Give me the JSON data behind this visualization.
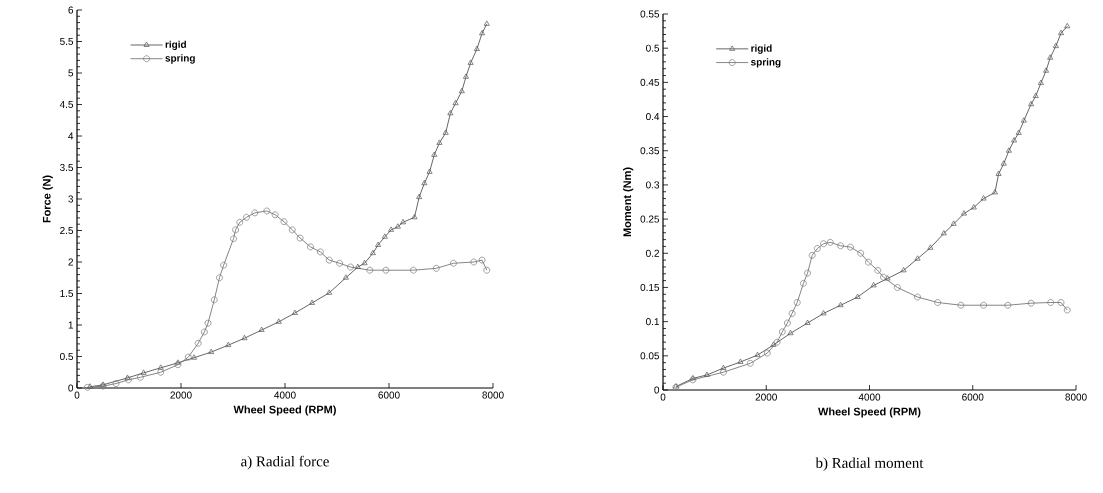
{
  "chart_data": [
    {
      "type": "line",
      "xlabel": "Wheel Speed (RPM)",
      "ylabel": "Force (N)",
      "annotations": [
        "a) Radial force"
      ],
      "xlim": [
        0,
        8000
      ],
      "xticks": [
        0,
        2000,
        4000,
        6000,
        8000
      ],
      "ylim": [
        0,
        6
      ],
      "yticks": [
        0,
        0.5,
        1,
        1.5,
        2,
        2.5,
        3,
        3.5,
        4,
        4.5,
        5,
        5.5,
        6
      ],
      "legend": "top left",
      "line_style": "solid",
      "grid": false,
      "series": [
        {
          "name": "rigid",
          "color": "#555555",
          "marker": "triangle",
          "x": [
            250,
            500,
            970,
            1280,
            1610,
            1940,
            2250,
            2580,
            2910,
            3220,
            3550,
            3880,
            4190,
            4520,
            4850,
            5170,
            5400,
            5530,
            5690,
            5790,
            5920,
            6040,
            6170,
            6270,
            6490,
            6580,
            6680,
            6780,
            6870,
            6970,
            7090,
            7180,
            7280,
            7400,
            7480,
            7570,
            7690,
            7790,
            7880
          ],
          "values": [
            0.02,
            0.05,
            0.16,
            0.24,
            0.32,
            0.4,
            0.48,
            0.57,
            0.68,
            0.79,
            0.92,
            1.05,
            1.19,
            1.35,
            1.51,
            1.75,
            1.92,
            1.98,
            2.14,
            2.27,
            2.4,
            2.51,
            2.56,
            2.63,
            2.71,
            3.03,
            3.25,
            3.43,
            3.7,
            3.89,
            4.05,
            4.36,
            4.52,
            4.71,
            4.94,
            5.16,
            5.38,
            5.63,
            5.78
          ]
        },
        {
          "name": "spring",
          "color": "#777777",
          "marker": "circle",
          "x": [
            200,
            500,
            750,
            990,
            1220,
            1610,
            1940,
            2140,
            2330,
            2450,
            2520,
            2640,
            2740,
            2820,
            3010,
            3050,
            3130,
            3260,
            3420,
            3650,
            3810,
            3980,
            4140,
            4290,
            4490,
            4680,
            4850,
            5050,
            5260,
            5630,
            5940,
            6470,
            6910,
            7240,
            7630,
            7790,
            7880
          ],
          "values": [
            0.01,
            0.03,
            0.07,
            0.13,
            0.17,
            0.25,
            0.37,
            0.49,
            0.71,
            0.89,
            1.03,
            1.4,
            1.75,
            1.95,
            2.37,
            2.51,
            2.63,
            2.71,
            2.78,
            2.81,
            2.75,
            2.64,
            2.51,
            2.38,
            2.24,
            2.16,
            2.03,
            1.98,
            1.92,
            1.87,
            1.87,
            1.87,
            1.9,
            1.98,
            2.0,
            2.03,
            1.87
          ]
        }
      ]
    },
    {
      "type": "line",
      "xlabel": "Wheel Speed (RPM)",
      "ylabel": "Moment (Nm)",
      "annotations": [
        "b) Radial moment"
      ],
      "xlim": [
        0,
        8000
      ],
      "xticks": [
        0,
        2000,
        4000,
        6000,
        8000
      ],
      "ylim": [
        0,
        0.55
      ],
      "yticks": [
        0,
        0.05,
        0.1,
        0.15,
        0.2,
        0.25,
        0.3,
        0.35,
        0.4,
        0.45,
        0.5,
        0.55
      ],
      "legend": "top left",
      "line_style": "solid",
      "grid": false,
      "series": [
        {
          "name": "rigid",
          "color": "#555555",
          "marker": "triangle",
          "x": [
            250,
            580,
            850,
            1170,
            1500,
            1830,
            2140,
            2470,
            2800,
            3110,
            3440,
            3770,
            4080,
            4350,
            4660,
            4930,
            5180,
            5440,
            5630,
            5830,
            6020,
            6210,
            6430,
            6500,
            6600,
            6700,
            6800,
            6890,
            6990,
            7130,
            7220,
            7320,
            7420,
            7500,
            7610,
            7710,
            7830
          ],
          "values": [
            0.005,
            0.017,
            0.022,
            0.032,
            0.041,
            0.051,
            0.066,
            0.083,
            0.098,
            0.112,
            0.124,
            0.136,
            0.153,
            0.163,
            0.175,
            0.192,
            0.208,
            0.229,
            0.243,
            0.258,
            0.267,
            0.28,
            0.289,
            0.316,
            0.331,
            0.35,
            0.365,
            0.376,
            0.394,
            0.418,
            0.43,
            0.449,
            0.467,
            0.486,
            0.503,
            0.522,
            0.532
          ]
        },
        {
          "name": "spring",
          "color": "#777777",
          "marker": "circle",
          "x": [
            250,
            580,
            1170,
            1690,
            2020,
            2210,
            2310,
            2410,
            2500,
            2600,
            2720,
            2800,
            2890,
            2990,
            3110,
            3240,
            3440,
            3630,
            3830,
            3980,
            4160,
            4270,
            4540,
            4930,
            5320,
            5770,
            6210,
            6680,
            7130,
            7510,
            7710,
            7830
          ],
          "values": [
            0.004,
            0.015,
            0.026,
            0.039,
            0.054,
            0.07,
            0.085,
            0.098,
            0.112,
            0.128,
            0.156,
            0.171,
            0.197,
            0.207,
            0.214,
            0.216,
            0.211,
            0.209,
            0.2,
            0.187,
            0.175,
            0.165,
            0.15,
            0.136,
            0.128,
            0.124,
            0.124,
            0.124,
            0.127,
            0.128,
            0.128,
            0.117
          ]
        }
      ]
    }
  ]
}
